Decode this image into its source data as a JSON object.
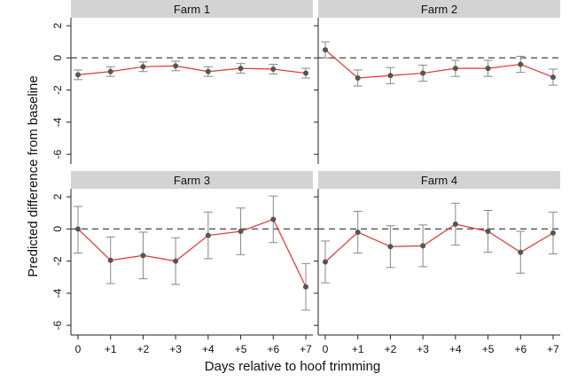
{
  "chart_data": {
    "type": "line",
    "xlabel": "Days relative to hoof trimming",
    "ylabel": "Predicted difference from baseline",
    "categories": [
      "0",
      "+1",
      "+2",
      "+3",
      "+4",
      "+5",
      "+6",
      "+7"
    ],
    "yticks": [
      2,
      0,
      -2,
      -4,
      -6
    ],
    "ylim": [
      -6.6,
      2.5
    ],
    "baseline": 0,
    "colors": {
      "line": "#e8322e",
      "marker": "#555555",
      "errorbar": "#888888",
      "strip": "#d3d3d3",
      "baseline": "#555555"
    },
    "panels": [
      {
        "title": "Farm 1",
        "values": [
          -1.05,
          -0.85,
          -0.55,
          -0.5,
          -0.85,
          -0.65,
          -0.7,
          -0.95
        ],
        "lower": [
          -1.35,
          -1.15,
          -0.85,
          -0.8,
          -1.15,
          -0.95,
          -1.0,
          -1.25
        ],
        "upper": [
          -0.75,
          -0.55,
          -0.25,
          -0.2,
          -0.55,
          -0.35,
          -0.4,
          -0.65
        ]
      },
      {
        "title": "Farm 2",
        "values": [
          0.5,
          -1.25,
          -1.1,
          -0.95,
          -0.65,
          -0.65,
          -0.4,
          -1.2
        ],
        "lower": [
          0.0,
          -1.75,
          -1.6,
          -1.45,
          -1.15,
          -1.15,
          -0.9,
          -1.7
        ],
        "upper": [
          1.0,
          -0.75,
          -0.6,
          -0.45,
          -0.15,
          -0.15,
          0.1,
          -0.7
        ]
      },
      {
        "title": "Farm 3",
        "values": [
          0.0,
          -1.95,
          -1.65,
          -2.0,
          -0.4,
          -0.15,
          0.6,
          -3.6
        ],
        "lower": [
          -1.5,
          -3.4,
          -3.1,
          -3.45,
          -1.85,
          -1.6,
          -0.85,
          -5.05
        ],
        "upper": [
          1.4,
          -0.5,
          -0.2,
          -0.55,
          1.05,
          1.3,
          2.05,
          -2.15
        ]
      },
      {
        "title": "Farm 4",
        "values": [
          -2.05,
          -0.2,
          -1.1,
          -1.05,
          0.3,
          -0.15,
          -1.45,
          -0.25
        ],
        "lower": [
          -3.35,
          -1.5,
          -2.4,
          -2.35,
          -1.0,
          -1.45,
          -2.75,
          -1.55
        ],
        "upper": [
          -0.75,
          1.1,
          0.2,
          0.25,
          1.6,
          1.15,
          -0.15,
          1.05
        ]
      }
    ]
  }
}
